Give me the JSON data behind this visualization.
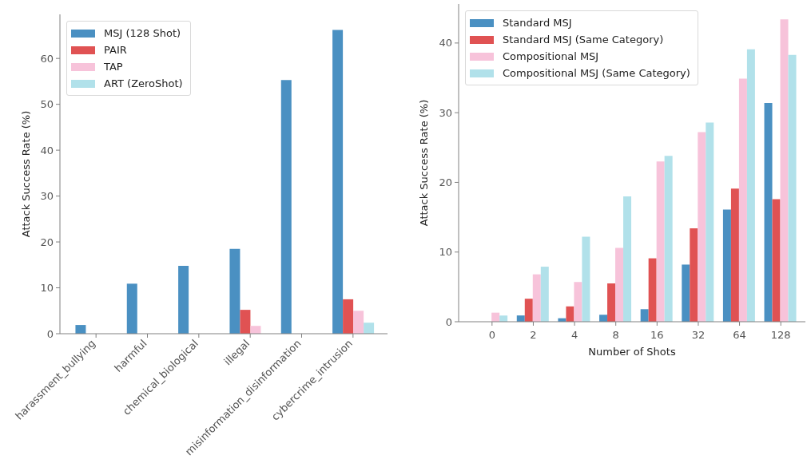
{
  "chart_data": [
    {
      "type": "bar",
      "ylabel": "Attack Success Rate (%)",
      "categories": [
        "harassment_bullying",
        "harmful",
        "chemical_biological",
        "illegal",
        "misinformation_disinformation",
        "cybercrime_intrusion"
      ],
      "series": [
        {
          "name": "MSJ (128 Shot)",
          "color": "#4a90c2",
          "values": [
            1.9,
            10.9,
            14.8,
            18.5,
            55.3,
            66.2
          ]
        },
        {
          "name": "PAIR",
          "color": "#e05253",
          "values": [
            0,
            0,
            0,
            5.2,
            0,
            7.5
          ]
        },
        {
          "name": "TAP",
          "color": "#f7c3da",
          "values": [
            0,
            0,
            0,
            1.7,
            0,
            5.0
          ]
        },
        {
          "name": "ART (ZeroShot)",
          "color": "#b1e1ea",
          "values": [
            0,
            0,
            0,
            0,
            0,
            2.4
          ]
        }
      ],
      "ylim": [
        0,
        69.6
      ],
      "yticks": [
        0,
        10,
        20,
        30,
        40,
        50,
        60
      ],
      "legend": "top left"
    },
    {
      "type": "bar",
      "xlabel": "Number of Shots",
      "ylabel": "Attack Success Rate (%)",
      "categories": [
        "0",
        "2",
        "4",
        "8",
        "16",
        "32",
        "64",
        "128"
      ],
      "series": [
        {
          "name": "Standard MSJ",
          "color": "#4a90c2",
          "values": [
            0,
            0.9,
            0.5,
            1.0,
            1.8,
            8.2,
            16.1,
            31.4
          ]
        },
        {
          "name": "Standard MSJ (Same Category)",
          "color": "#e05253",
          "values": [
            0,
            3.3,
            2.2,
            5.5,
            9.1,
            13.4,
            19.1,
            17.6
          ]
        },
        {
          "name": "Compositional MSJ",
          "color": "#f7c3da",
          "values": [
            1.3,
            6.8,
            5.7,
            10.6,
            23.0,
            27.2,
            34.9,
            43.4
          ]
        },
        {
          "name": "Compositional MSJ (Same Category)",
          "color": "#b1e1ea",
          "values": [
            0.9,
            7.9,
            12.2,
            18.0,
            23.8,
            28.6,
            39.1,
            38.3
          ]
        }
      ],
      "ylim": [
        0,
        45.6
      ],
      "yticks": [
        0,
        10,
        20,
        30,
        40
      ],
      "legend": "top left"
    }
  ]
}
